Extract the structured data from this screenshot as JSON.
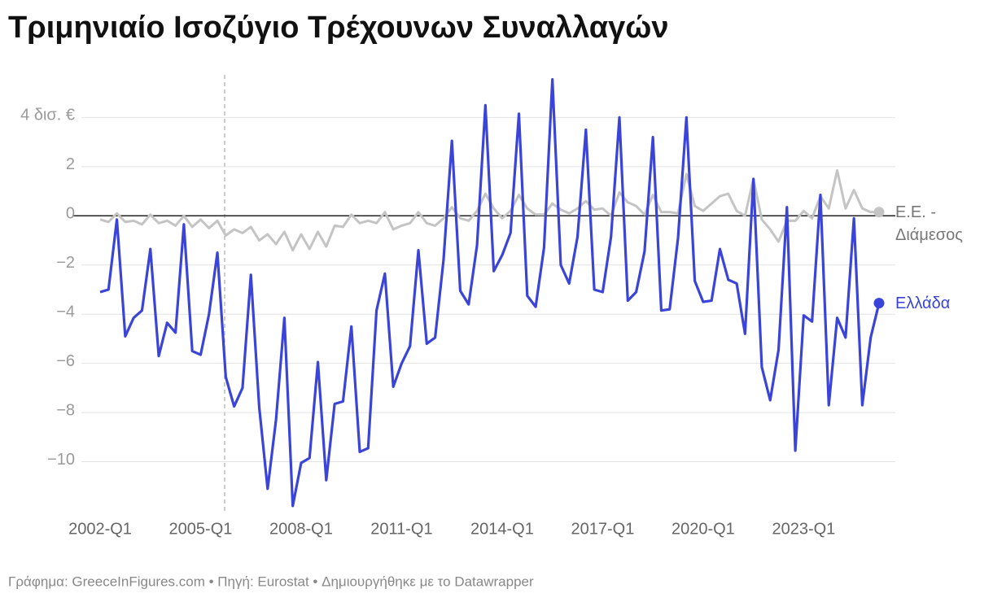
{
  "chart_data": {
    "type": "line",
    "title": "Τριμηνιαίο Ισοζύγιο Τρέχουνων Συναλλαγών",
    "source": "Γράφημα: GreeceInFigures.com • Πηγή: Eurostat • Δημιουργήθηκε με το Datawrapper",
    "categories": [
      "2002-Q1",
      null,
      null,
      null,
      null,
      null,
      null,
      null,
      null,
      null,
      null,
      null,
      "2005-Q1",
      null,
      null,
      null,
      null,
      null,
      null,
      null,
      null,
      null,
      null,
      null,
      "2008-Q1",
      null,
      null,
      null,
      null,
      null,
      null,
      null,
      null,
      null,
      null,
      null,
      "2011-Q1",
      null,
      null,
      null,
      null,
      null,
      null,
      null,
      null,
      null,
      null,
      null,
      "2014-Q1",
      null,
      null,
      null,
      null,
      null,
      null,
      null,
      null,
      null,
      null,
      null,
      "2017-Q1",
      null,
      null,
      null,
      null,
      null,
      null,
      null,
      null,
      null,
      null,
      null,
      "2020-Q1",
      null,
      null,
      null,
      null,
      null,
      null,
      null,
      null,
      null,
      null,
      null,
      "2023-Q1",
      null,
      null,
      null,
      null,
      null,
      null,
      null,
      null,
      null
    ],
    "series": [
      {
        "name": "Ε.Ε. - Διάμεσος",
        "color": "#c4c4c4",
        "label_color": "#777777",
        "values": [
          -0.15,
          -0.25,
          0.1,
          -0.25,
          -0.2,
          -0.35,
          0.05,
          -0.3,
          -0.2,
          -0.4,
          0.0,
          -0.45,
          -0.15,
          -0.5,
          -0.2,
          -0.8,
          -0.55,
          -0.7,
          -0.45,
          -1.0,
          -0.75,
          -1.15,
          -0.65,
          -1.4,
          -0.75,
          -1.35,
          -0.65,
          -1.25,
          -0.4,
          -0.45,
          0.05,
          -0.3,
          -0.2,
          -0.3,
          0.15,
          -0.55,
          -0.4,
          -0.3,
          0.15,
          -0.3,
          -0.4,
          -0.1,
          0.35,
          -0.1,
          -0.2,
          0.2,
          0.9,
          0.3,
          -0.1,
          0.2,
          0.85,
          0.3,
          0.05,
          0.05,
          0.5,
          0.25,
          0.1,
          0.3,
          0.6,
          0.25,
          0.3,
          0.0,
          0.95,
          0.55,
          0.4,
          0.05,
          0.85,
          0.15,
          0.15,
          0.1,
          1.7,
          0.4,
          0.2,
          0.5,
          0.8,
          0.9,
          0.2,
          0.0,
          1.5,
          -0.15,
          -0.55,
          -1.05,
          -0.2,
          -0.2,
          0.2,
          -0.1,
          0.8,
          0.3,
          1.85,
          0.3,
          1.05,
          0.3,
          0.15,
          0.15
        ]
      },
      {
        "name": "Ελλάδα",
        "color": "#3a44d8",
        "label_color": "#3a44d8",
        "values": [
          -3.1,
          -3.0,
          -0.15,
          -4.9,
          -4.15,
          -3.85,
          -1.35,
          -5.7,
          -4.35,
          -4.75,
          -0.35,
          -5.5,
          -5.65,
          -4.0,
          -1.5,
          -6.55,
          -7.75,
          -7.0,
          -2.4,
          -7.8,
          -11.1,
          -8.3,
          -4.15,
          -11.8,
          -10.05,
          -9.85,
          -5.95,
          -10.75,
          -7.65,
          -7.55,
          -4.5,
          -9.6,
          -9.45,
          -3.85,
          -2.35,
          -6.95,
          -6.0,
          -5.3,
          -1.4,
          -5.2,
          -4.95,
          -1.8,
          3.05,
          -3.05,
          -3.6,
          -1.2,
          4.5,
          -2.25,
          -1.6,
          -0.7,
          4.15,
          -3.25,
          -3.7,
          -1.3,
          5.55,
          -2.0,
          -2.75,
          -0.85,
          3.5,
          -3.0,
          -3.1,
          -0.85,
          4.0,
          -3.45,
          -3.1,
          -1.45,
          3.2,
          -3.85,
          -3.8,
          -0.9,
          4.0,
          -2.65,
          -3.5,
          -3.45,
          -1.35,
          -2.6,
          -2.75,
          -4.8,
          1.5,
          -6.15,
          -7.5,
          -5.45,
          0.35,
          -9.55,
          -4.05,
          -4.3,
          0.85,
          -7.7,
          -4.15,
          -4.95,
          -0.1,
          -7.7,
          -4.95,
          -3.55
        ]
      }
    ],
    "ylim": [
      -12,
      5.8
    ],
    "yticks": [
      {
        "value": -10,
        "label": "−10"
      },
      {
        "value": -8,
        "label": "−8"
      },
      {
        "value": -6,
        "label": "−6"
      },
      {
        "value": -4,
        "label": "−4"
      },
      {
        "value": -2,
        "label": "−2"
      },
      0,
      2,
      {
        "value": 4,
        "label": "4 δισ. €"
      }
    ],
    "grid": true
  }
}
